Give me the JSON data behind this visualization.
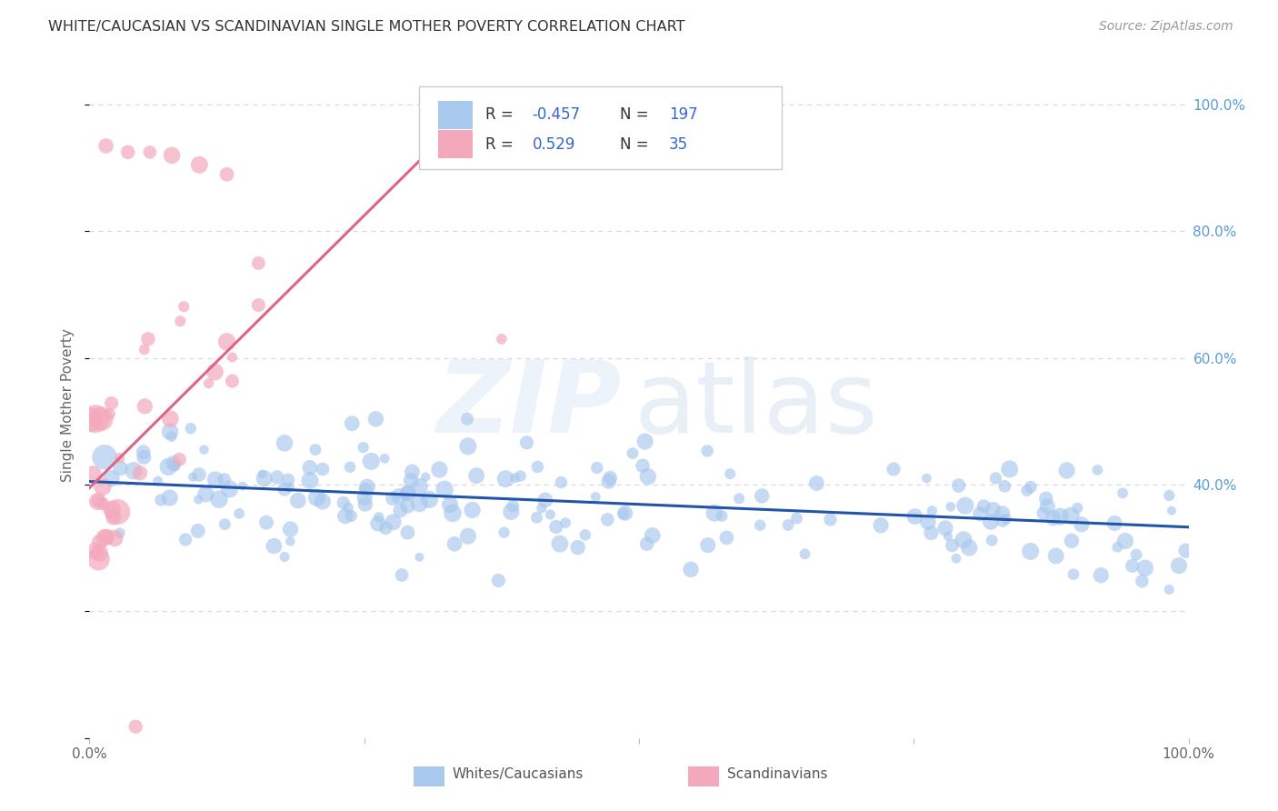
{
  "title": "WHITE/CAUCASIAN VS SCANDINAVIAN SINGLE MOTHER POVERTY CORRELATION CHART",
  "source": "Source: ZipAtlas.com",
  "ylabel": "Single Mother Poverty",
  "right_yticks": [
    0.4,
    0.6,
    0.8,
    1.0
  ],
  "right_yticklabels": [
    "40.0%",
    "60.0%",
    "80.0%",
    "100.0%"
  ],
  "top_ytick_label": "100.0%",
  "blue_R": -0.457,
  "blue_N": 197,
  "pink_R": 0.529,
  "pink_N": 35,
  "blue_color": "#A8C8ED",
  "pink_color": "#F4A8BB",
  "blue_line_color": "#2255AA",
  "pink_line_color": "#DD6688",
  "legend_blue_label": "Whites/Caucasians",
  "legend_pink_label": "Scandinavians",
  "watermark_zip": "ZIP",
  "watermark_atlas": "atlas",
  "background_color": "#ffffff",
  "grid_color": "#d8d8d8",
  "blue_trend_intercept": 0.405,
  "blue_trend_slope": -0.072,
  "pink_trend_intercept": 0.395,
  "pink_trend_slope": 1.72,
  "ylim_min": 0.0,
  "ylim_max": 1.05
}
